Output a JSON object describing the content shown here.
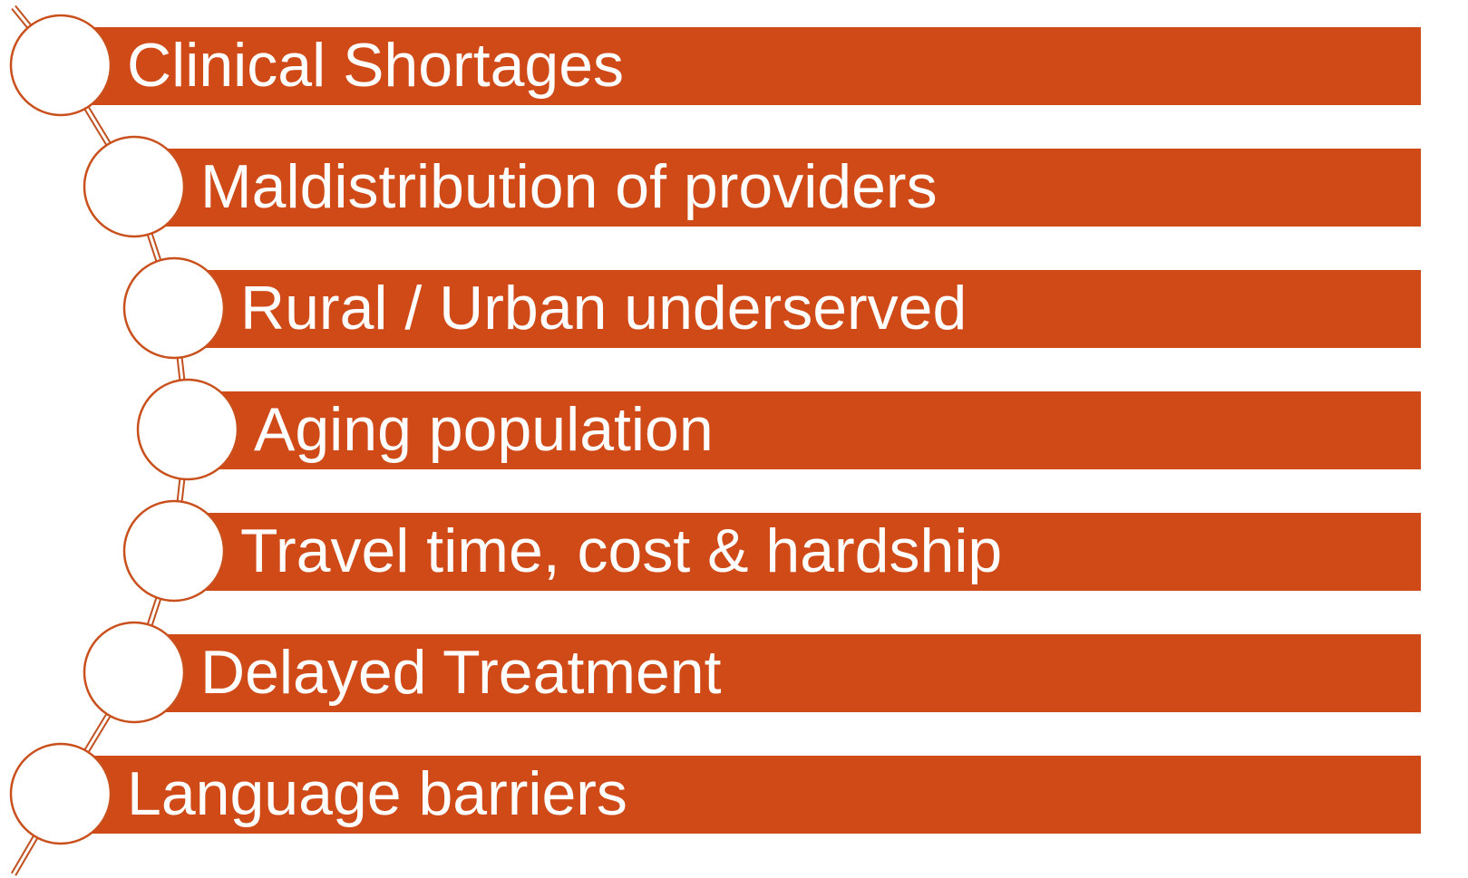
{
  "items": [
    {
      "label": "Clinical Shortages"
    },
    {
      "label": "Maldistribution of providers"
    },
    {
      "label": "Rural / Urban underserved"
    },
    {
      "label": "Aging population"
    },
    {
      "label": "Travel time, cost & hardship"
    },
    {
      "label": "Delayed Treatment"
    },
    {
      "label": "Language barriers"
    }
  ]
}
